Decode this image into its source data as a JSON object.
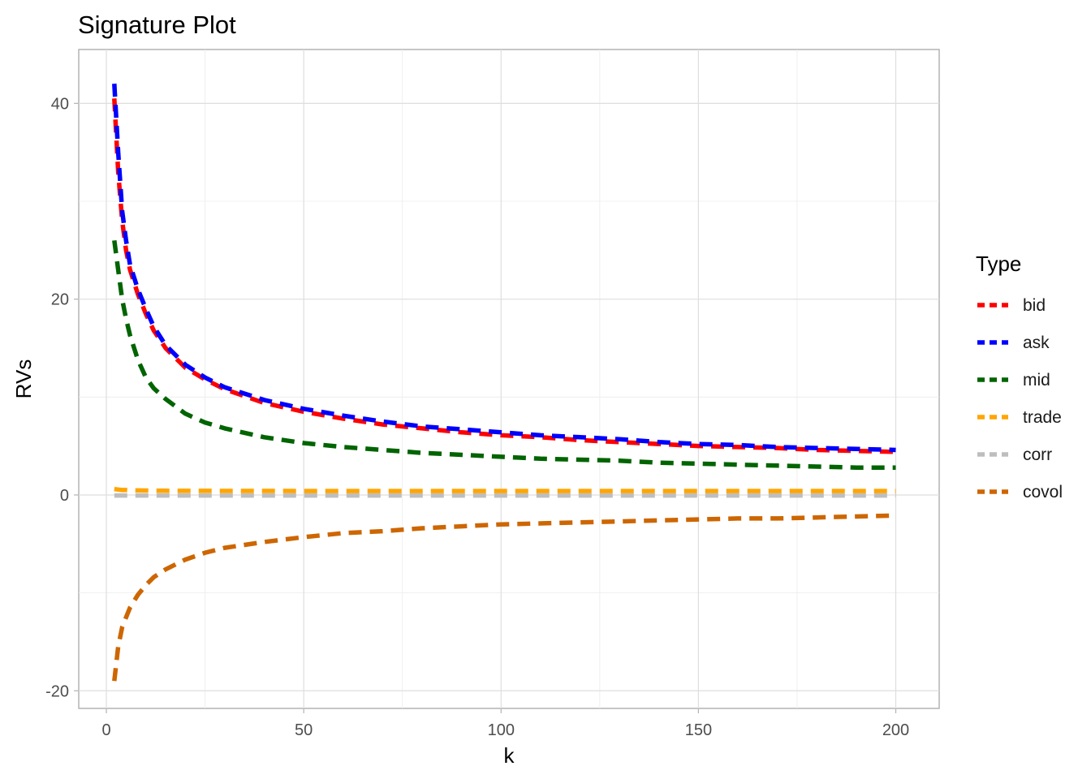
{
  "chart_data": {
    "type": "line",
    "title": "Signature Plot",
    "xlabel": "k",
    "ylabel": "RVs",
    "xlim": [
      -7,
      211
    ],
    "ylim": [
      -21.8,
      45.5
    ],
    "x_ticks": [
      0,
      50,
      100,
      150,
      200
    ],
    "y_ticks": [
      -20,
      0,
      20,
      40
    ],
    "x_tick_labels": [
      "0",
      "50",
      "100",
      "150",
      "200"
    ],
    "y_tick_labels": [
      "-20",
      "0",
      "20",
      "40"
    ],
    "grid": true,
    "legend": {
      "title": "Type",
      "position": "right"
    },
    "line_style": "dashed",
    "x": [
      2,
      3,
      4,
      5,
      6,
      8,
      10,
      12,
      15,
      20,
      25,
      30,
      40,
      50,
      60,
      70,
      80,
      90,
      100,
      110,
      120,
      130,
      140,
      150,
      160,
      170,
      180,
      190,
      200
    ],
    "series": [
      {
        "name": "bid",
        "color": "#ff0000",
        "values": [
          40.5,
          33.0,
          28.0,
          25.0,
          23.0,
          20.5,
          18.5,
          16.8,
          15.0,
          13.0,
          11.8,
          10.8,
          9.4,
          8.5,
          7.8,
          7.2,
          6.8,
          6.4,
          6.1,
          5.9,
          5.6,
          5.4,
          5.2,
          5.0,
          4.9,
          4.8,
          4.6,
          4.5,
          4.4
        ]
      },
      {
        "name": "ask",
        "color": "#0000ff",
        "values": [
          42.0,
          35.0,
          29.0,
          26.0,
          23.5,
          21.0,
          19.0,
          17.2,
          15.3,
          13.3,
          12.0,
          11.0,
          9.7,
          8.8,
          8.1,
          7.5,
          7.0,
          6.7,
          6.4,
          6.1,
          5.9,
          5.7,
          5.4,
          5.2,
          5.1,
          4.9,
          4.8,
          4.7,
          4.6
        ]
      },
      {
        "name": "mid",
        "color": "#006400",
        "values": [
          26.0,
          23.0,
          20.0,
          18.0,
          16.3,
          13.8,
          12.0,
          10.9,
          9.8,
          8.3,
          7.4,
          6.8,
          5.9,
          5.3,
          4.9,
          4.6,
          4.3,
          4.1,
          3.9,
          3.7,
          3.6,
          3.5,
          3.3,
          3.2,
          3.1,
          3.0,
          2.9,
          2.8,
          2.8
        ]
      },
      {
        "name": "trade",
        "color": "#ffa500",
        "values": [
          0.6,
          0.55,
          0.5,
          0.5,
          0.48,
          0.46,
          0.45,
          0.44,
          0.43,
          0.42,
          0.42,
          0.41,
          0.41,
          0.4,
          0.4,
          0.4,
          0.4,
          0.4,
          0.4,
          0.4,
          0.4,
          0.4,
          0.4,
          0.4,
          0.4,
          0.4,
          0.4,
          0.4,
          0.4
        ]
      },
      {
        "name": "corr",
        "color": "#bebebe",
        "values": [
          -0.05,
          -0.05,
          -0.05,
          -0.05,
          -0.05,
          -0.05,
          -0.05,
          -0.05,
          -0.05,
          -0.05,
          -0.05,
          -0.05,
          -0.05,
          -0.05,
          -0.05,
          -0.05,
          -0.05,
          -0.05,
          -0.05,
          -0.05,
          -0.05,
          -0.05,
          -0.05,
          -0.05,
          -0.05,
          -0.05,
          -0.05,
          -0.05,
          -0.05
        ]
      },
      {
        "name": "covol",
        "color": "#cd6600",
        "values": [
          -19.0,
          -15.5,
          -13.5,
          -12.5,
          -11.5,
          -10.2,
          -9.2,
          -8.4,
          -7.6,
          -6.6,
          -5.9,
          -5.4,
          -4.8,
          -4.3,
          -3.9,
          -3.7,
          -3.4,
          -3.2,
          -3.0,
          -2.9,
          -2.8,
          -2.7,
          -2.6,
          -2.5,
          -2.4,
          -2.4,
          -2.3,
          -2.2,
          -2.1
        ]
      }
    ]
  }
}
